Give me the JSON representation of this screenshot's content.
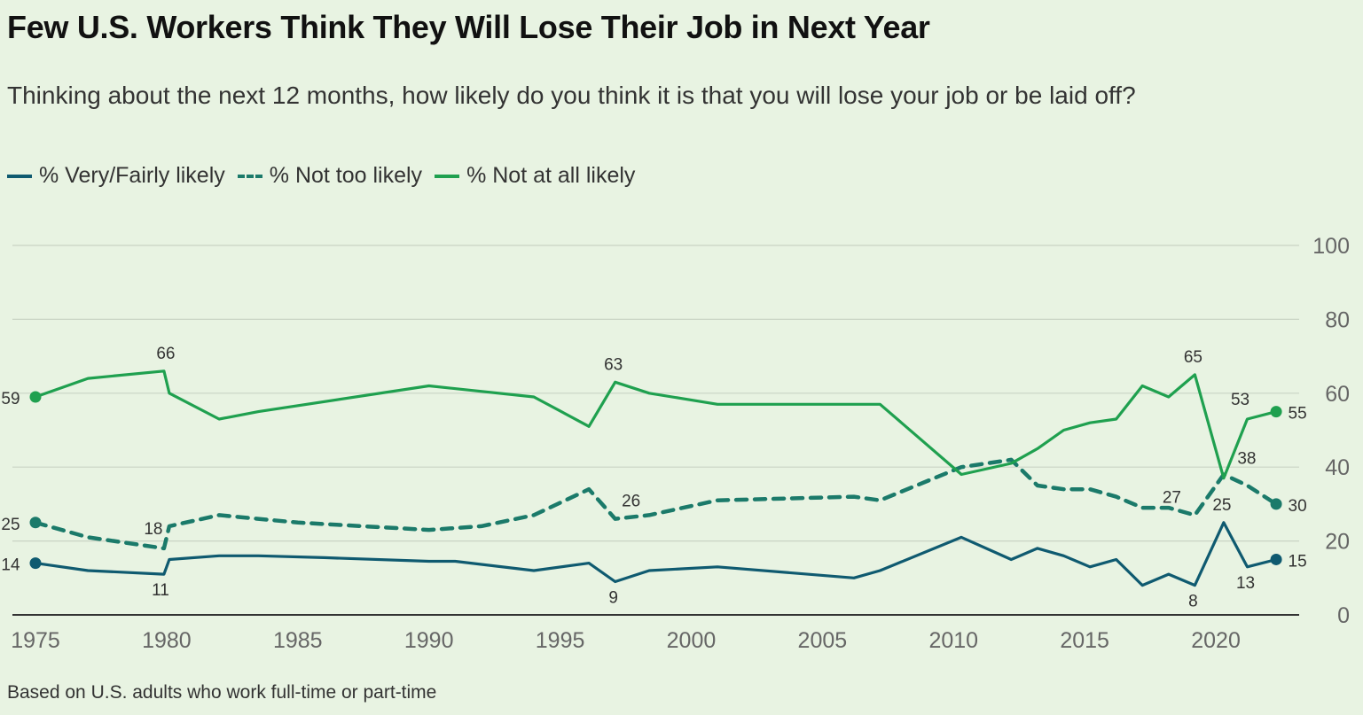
{
  "header": {
    "title": "Few U.S. Workers Think They Will Lose Their Job in Next Year",
    "subtitle": "Thinking about the next 12 months, how likely do you think it is that you will lose your job or be laid off?"
  },
  "legend": [
    {
      "label": "% Very/Fairly likely",
      "style": "solid",
      "color": "#0f5a70"
    },
    {
      "label": "% Not too likely",
      "style": "dashed",
      "color": "#1b7a6a"
    },
    {
      "label": "% Not at all likely",
      "style": "solid",
      "color": "#1fa04f"
    }
  ],
  "footnote": "Based on U.S. adults who work full-time or part-time",
  "chart_data": {
    "type": "line",
    "title": "Few U.S. Workers Think They Will Lose Their Job in Next Year",
    "subtitle": "Thinking about the next 12 months, how likely do you think it is that you will lose your job or be laid off?",
    "x_ticks": [
      1975,
      1980,
      1985,
      1990,
      1995,
      2000,
      2005,
      2010,
      2015,
      2020
    ],
    "y_ticks": [
      0,
      20,
      40,
      60,
      80,
      100
    ],
    "xlim": [
      1975,
      2022.5
    ],
    "ylim": [
      0,
      100
    ],
    "grid": "horizontal",
    "legend_position": "top-left",
    "series": [
      {
        "name": "% Very/Fairly likely",
        "color": "#0f5a70",
        "style": "solid",
        "points": [
          [
            1975,
            14
          ],
          [
            1977,
            12
          ],
          [
            1979.9,
            11
          ],
          [
            1980.1,
            15
          ],
          [
            1982,
            16
          ],
          [
            1983.5,
            16
          ],
          [
            1986,
            15.5
          ],
          [
            1990,
            14.5
          ],
          [
            1991,
            14.5
          ],
          [
            1994,
            12
          ],
          [
            1996.1,
            14
          ],
          [
            1997.1,
            9
          ],
          [
            1998.4,
            12
          ],
          [
            2001,
            13
          ],
          [
            2006.2,
            10
          ],
          [
            2007.2,
            12
          ],
          [
            2010.3,
            21
          ],
          [
            2012.2,
            15
          ],
          [
            2013.2,
            18
          ],
          [
            2014.2,
            16
          ],
          [
            2015.2,
            13
          ],
          [
            2016.2,
            15
          ],
          [
            2017.2,
            8
          ],
          [
            2018.2,
            11
          ],
          [
            2019.2,
            8
          ],
          [
            2020.3,
            25
          ],
          [
            2021.2,
            13
          ],
          [
            2022.3,
            15
          ]
        ],
        "labels": [
          {
            "x": 1975,
            "y": 14,
            "text": "14"
          },
          {
            "x": 1979.9,
            "y": 11,
            "text": "11"
          },
          {
            "x": 1997.1,
            "y": 9,
            "text": "9"
          },
          {
            "x": 2019.2,
            "y": 8,
            "text": "8"
          },
          {
            "x": 2020.3,
            "y": 25,
            "text": "25"
          },
          {
            "x": 2021.2,
            "y": 13,
            "text": "13"
          },
          {
            "x": 2022.3,
            "y": 15,
            "text": "15"
          }
        ]
      },
      {
        "name": "% Not too likely",
        "color": "#1b7a6a",
        "style": "dashed",
        "points": [
          [
            1975,
            25
          ],
          [
            1977,
            21
          ],
          [
            1979.9,
            18
          ],
          [
            1980.1,
            24
          ],
          [
            1982,
            27
          ],
          [
            1985,
            25
          ],
          [
            1990,
            23
          ],
          [
            1992,
            24
          ],
          [
            1994,
            27
          ],
          [
            1996.1,
            34
          ],
          [
            1997.1,
            26
          ],
          [
            1998.4,
            27
          ],
          [
            2001,
            31
          ],
          [
            2006.2,
            32
          ],
          [
            2007.2,
            31
          ],
          [
            2010.3,
            40
          ],
          [
            2012.2,
            42
          ],
          [
            2013.2,
            35
          ],
          [
            2014.2,
            34
          ],
          [
            2015.2,
            34
          ],
          [
            2016.2,
            32
          ],
          [
            2017.2,
            29
          ],
          [
            2018.2,
            29
          ],
          [
            2019.2,
            27
          ],
          [
            2020.3,
            38
          ],
          [
            2021.2,
            35
          ],
          [
            2022.3,
            30
          ]
        ],
        "labels": [
          {
            "x": 1975,
            "y": 25,
            "text": "25"
          },
          {
            "x": 1979.9,
            "y": 18,
            "text": "18"
          },
          {
            "x": 1997.1,
            "y": 26,
            "text": "26"
          },
          {
            "x": 2019.2,
            "y": 27,
            "text": "27"
          },
          {
            "x": 2020.3,
            "y": 38,
            "text": "38"
          },
          {
            "x": 2022.3,
            "y": 30,
            "text": "30"
          }
        ]
      },
      {
        "name": "% Not at all likely",
        "color": "#1fa04f",
        "style": "solid",
        "points": [
          [
            1975,
            59
          ],
          [
            1977,
            64
          ],
          [
            1979.9,
            66
          ],
          [
            1980.1,
            60
          ],
          [
            1982,
            53
          ],
          [
            1983.5,
            55
          ],
          [
            1990,
            62
          ],
          [
            1994,
            59
          ],
          [
            1996.1,
            51
          ],
          [
            1997.1,
            63
          ],
          [
            1998.4,
            60
          ],
          [
            2001,
            57
          ],
          [
            2006.2,
            57
          ],
          [
            2007.2,
            57
          ],
          [
            2010.3,
            38
          ],
          [
            2012.2,
            41
          ],
          [
            2013.2,
            45
          ],
          [
            2014.2,
            50
          ],
          [
            2015.2,
            52
          ],
          [
            2016.2,
            53
          ],
          [
            2017.2,
            62
          ],
          [
            2018.2,
            59
          ],
          [
            2019.2,
            65
          ],
          [
            2020.3,
            37
          ],
          [
            2021.2,
            53
          ],
          [
            2022.3,
            55
          ]
        ],
        "labels": [
          {
            "x": 1975,
            "y": 59,
            "text": "59"
          },
          {
            "x": 1979.9,
            "y": 66,
            "text": "66"
          },
          {
            "x": 1997.1,
            "y": 63,
            "text": "63"
          },
          {
            "x": 2019.2,
            "y": 65,
            "text": "65"
          },
          {
            "x": 2021.2,
            "y": 53,
            "text": "53"
          },
          {
            "x": 2022.3,
            "y": 55,
            "text": "55"
          }
        ]
      }
    ]
  }
}
